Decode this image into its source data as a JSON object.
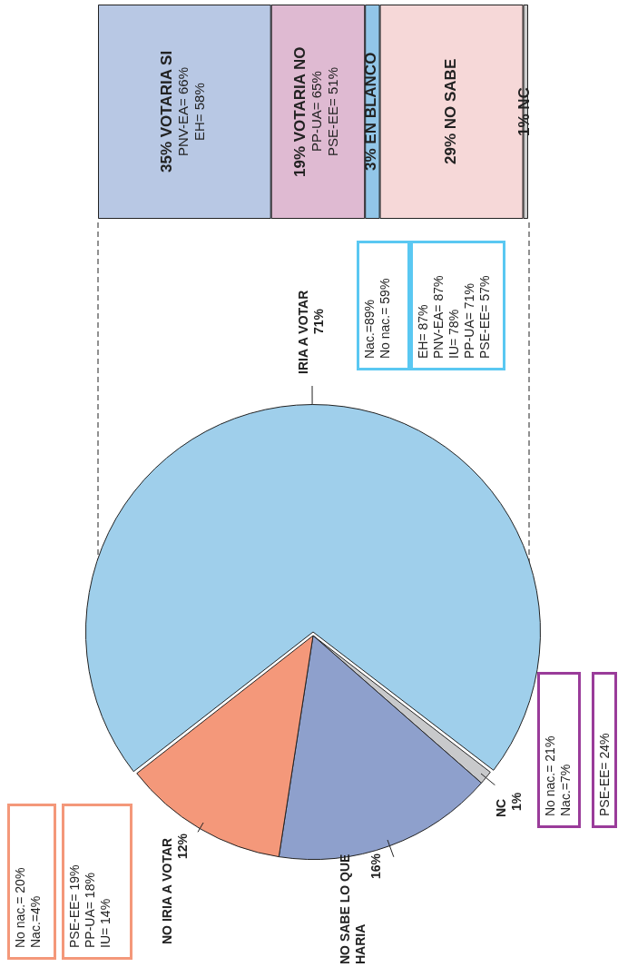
{
  "chart_data": [
    {
      "type": "pie",
      "categories": [
        "IRIA A VOTAR",
        "NC",
        "NO SABE LO QUE HARIA",
        "NO IRIA A VOTAR"
      ],
      "values": [
        71,
        1,
        16,
        12
      ],
      "colors": [
        "#9fcfeb",
        "#c8c9cb",
        "#8ea0cc",
        "#f4987a"
      ],
      "value_labels": [
        "71%",
        "1%",
        "16%",
        "12%"
      ],
      "annotations": [
        "Nac.=89%\nNo nac.= 59%",
        "EH= 87%\nPNV-EA= 87%\nIU= 78%\nPP-UA= 71%\nPSE-EE= 57%",
        "No nac.= 20%\nNac.=4%",
        "PSE-EE= 19%\nPP-UA= 18%\nIU= 14%",
        "No nac.= 21%\nNac.=7%",
        "PSE-EE= 24%"
      ]
    },
    {
      "type": "bar",
      "orientation": "horizontal",
      "stacked": true,
      "categories": [
        null
      ],
      "tick_labels": false,
      "series": [
        {
          "name": "VOTARIA SI",
          "color": "#b8c8e4",
          "values": [
            35
          ],
          "value_labels": [
            "35%"
          ]
        },
        {
          "name": "VOTARIA NO",
          "color": "#dfbad2",
          "values": [
            19
          ],
          "value_labels": [
            "19%"
          ]
        },
        {
          "name": "EN BLANCO",
          "color": "#92c6e8",
          "values": [
            3
          ],
          "value_labels": [
            "3%"
          ]
        },
        {
          "name": "NO SABE",
          "color": "#f6d8d8",
          "values": [
            29
          ],
          "value_labels": [
            "29%"
          ]
        },
        {
          "name": "NC",
          "color": "#d0d0d0",
          "values": [
            1
          ],
          "value_labels": [
            "1%"
          ]
        }
      ],
      "annotations": [
        "PNV-EA= 66%",
        "EH= 58%",
        "PP-UA= 65%",
        "PSE-EE= 51%"
      ]
    }
  ]
}
